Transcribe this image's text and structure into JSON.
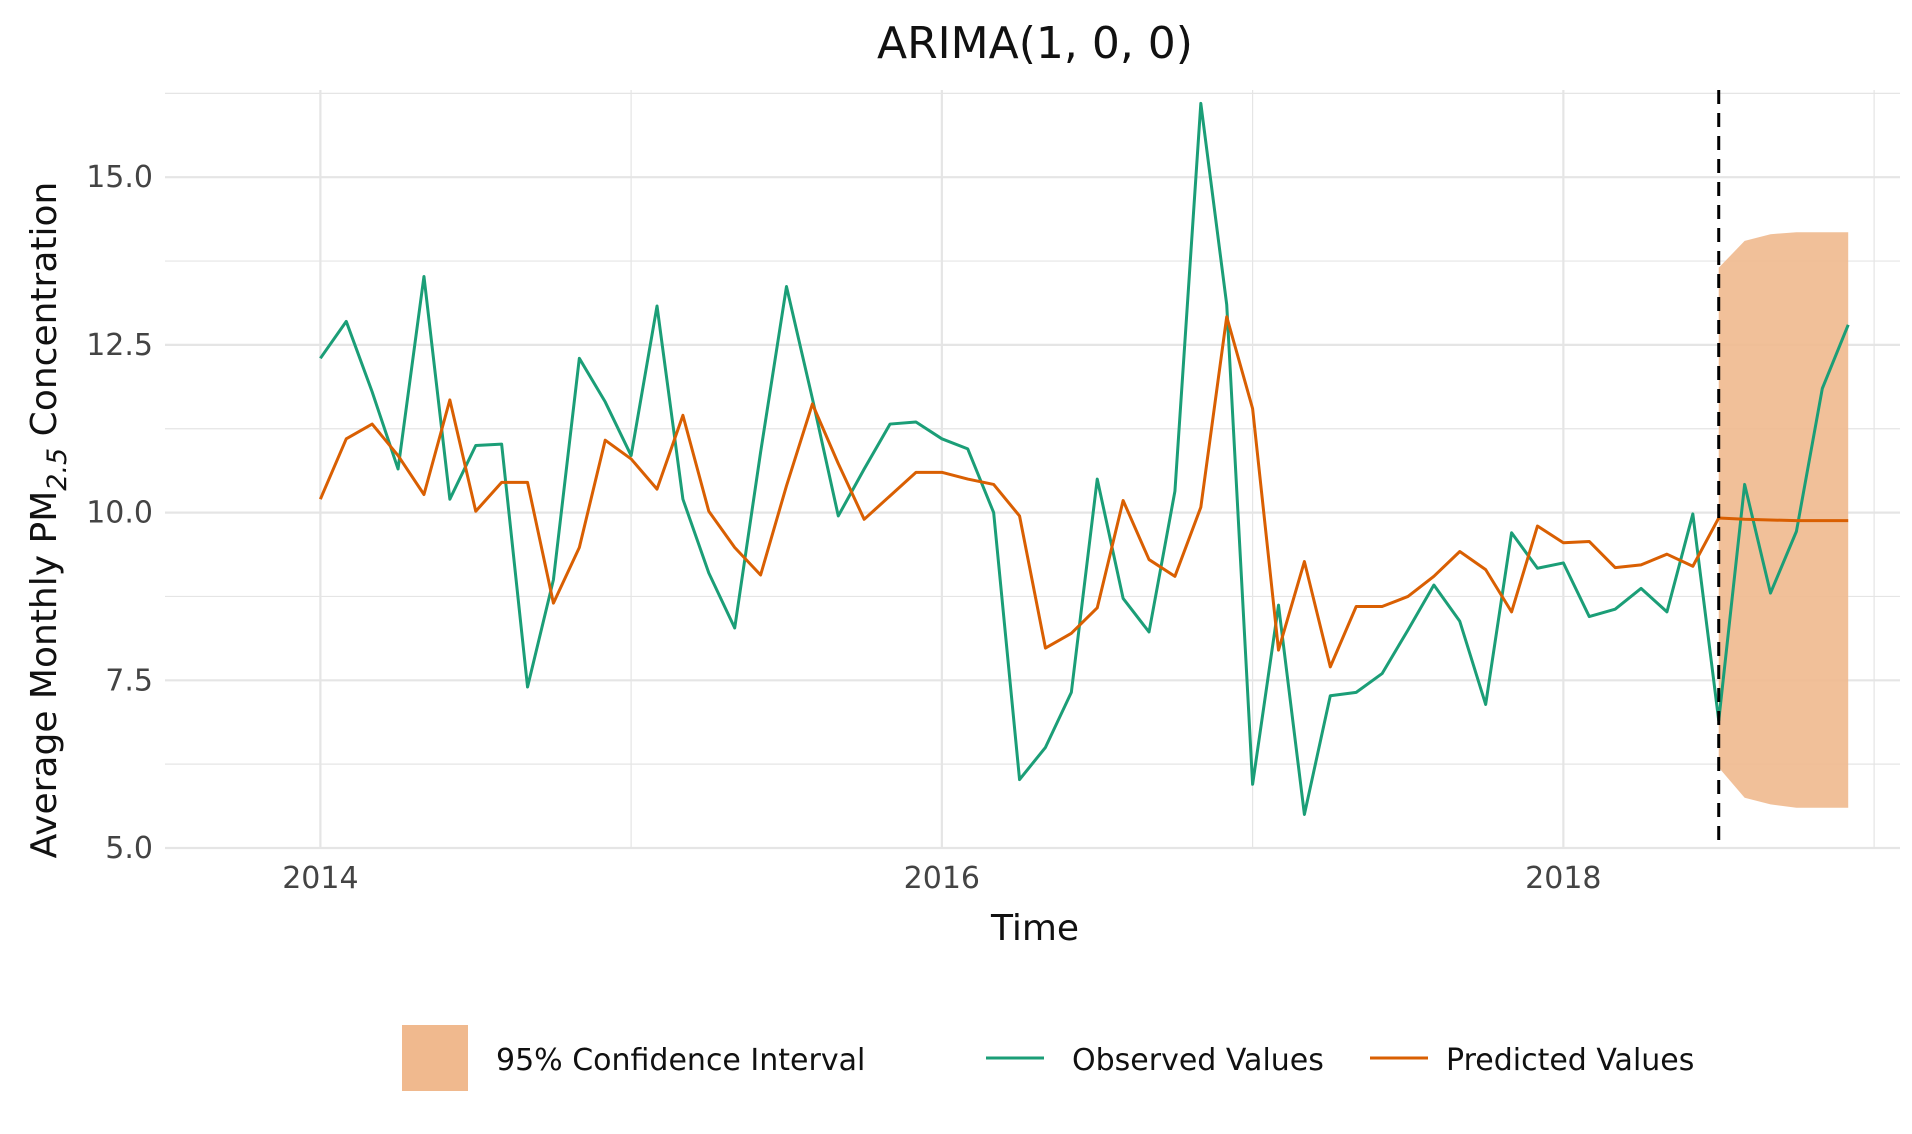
{
  "chart_data": {
    "type": "line",
    "title": "ARIMA(1, 0, 0)",
    "xlabel": "Time",
    "ylabel": "Average Monthly PM",
    "ylabel_sub": "2.5",
    "ylabel_suffix": " Concentration",
    "xlim": [
      "2013-07",
      "2019-02"
    ],
    "ylim": [
      5.0,
      16.3
    ],
    "grid": true,
    "legend_position": "bottom",
    "x_ticks": [
      {
        "value": "2014-01",
        "label": "2014"
      },
      {
        "value": "2016-01",
        "label": "2016"
      },
      {
        "value": "2018-01",
        "label": "2018"
      }
    ],
    "y_ticks": [
      {
        "value": 5.0,
        "label": "5.0"
      },
      {
        "value": 7.5,
        "label": "7.5"
      },
      {
        "value": 10.0,
        "label": "10.0"
      },
      {
        "value": 12.5,
        "label": "12.5"
      },
      {
        "value": 15.0,
        "label": "15.0"
      }
    ],
    "forecast_start": "2018-07",
    "legend": [
      {
        "key": "ci",
        "label": "95% Confidence Interval"
      },
      {
        "key": "observed",
        "label": "Observed Values"
      },
      {
        "key": "predicted",
        "label": "Predicted Values"
      }
    ],
    "series": [
      {
        "key": "observed",
        "name": "Observed Values",
        "x": [
          "2014-01",
          "2014-02",
          "2014-03",
          "2014-04",
          "2014-05",
          "2014-06",
          "2014-07",
          "2014-08",
          "2014-09",
          "2014-10",
          "2014-11",
          "2014-12",
          "2015-01",
          "2015-02",
          "2015-03",
          "2015-04",
          "2015-05",
          "2015-06",
          "2015-07",
          "2015-08",
          "2015-09",
          "2015-10",
          "2015-11",
          "2015-12",
          "2016-01",
          "2016-02",
          "2016-03",
          "2016-04",
          "2016-05",
          "2016-06",
          "2016-07",
          "2016-08",
          "2016-09",
          "2016-10",
          "2016-11",
          "2016-12",
          "2017-01",
          "2017-02",
          "2017-03",
          "2017-04",
          "2017-05",
          "2017-06",
          "2017-07",
          "2017-08",
          "2017-09",
          "2017-10",
          "2017-11",
          "2017-12",
          "2018-01",
          "2018-02",
          "2018-03",
          "2018-04",
          "2018-05",
          "2018-06",
          "2018-07",
          "2018-08",
          "2018-09",
          "2018-10",
          "2018-11",
          "2018-12"
        ],
        "values": [
          12.3,
          12.85,
          11.8,
          10.65,
          13.52,
          10.2,
          11.0,
          11.02,
          7.4,
          9.0,
          12.3,
          11.65,
          10.85,
          13.08,
          10.2,
          9.1,
          8.28,
          10.9,
          13.37,
          11.7,
          9.95,
          10.65,
          11.32,
          11.35,
          11.1,
          10.95,
          10.0,
          6.02,
          6.5,
          7.32,
          10.5,
          8.72,
          8.22,
          10.32,
          16.1,
          13.1,
          5.95,
          8.62,
          5.5,
          7.27,
          7.32,
          7.6,
          8.25,
          8.92,
          8.38,
          7.14,
          9.7,
          9.17,
          9.25,
          8.45,
          8.56,
          8.87,
          8.52,
          9.98,
          6.9,
          10.42,
          8.8,
          9.72,
          11.85,
          12.8
        ]
      },
      {
        "key": "predicted",
        "name": "Predicted Values",
        "x": [
          "2014-01",
          "2014-02",
          "2014-03",
          "2014-04",
          "2014-05",
          "2014-06",
          "2014-07",
          "2014-08",
          "2014-09",
          "2014-10",
          "2014-11",
          "2014-12",
          "2015-01",
          "2015-02",
          "2015-03",
          "2015-04",
          "2015-05",
          "2015-06",
          "2015-07",
          "2015-08",
          "2015-09",
          "2015-10",
          "2015-11",
          "2015-12",
          "2016-01",
          "2016-02",
          "2016-03",
          "2016-04",
          "2016-05",
          "2016-06",
          "2016-07",
          "2016-08",
          "2016-09",
          "2016-10",
          "2016-11",
          "2016-12",
          "2017-01",
          "2017-02",
          "2017-03",
          "2017-04",
          "2017-05",
          "2017-06",
          "2017-07",
          "2017-08",
          "2017-09",
          "2017-10",
          "2017-11",
          "2017-12",
          "2018-01",
          "2018-02",
          "2018-03",
          "2018-04",
          "2018-05",
          "2018-06",
          "2018-07",
          "2018-08",
          "2018-09",
          "2018-10",
          "2018-11",
          "2018-12"
        ],
        "values": [
          10.2,
          11.1,
          11.32,
          10.85,
          10.27,
          11.68,
          10.02,
          10.45,
          10.45,
          8.65,
          9.48,
          11.08,
          10.8,
          10.35,
          11.45,
          10.02,
          9.48,
          9.07,
          10.4,
          11.62,
          10.73,
          9.9,
          10.25,
          10.6,
          10.6,
          10.5,
          10.42,
          9.95,
          7.98,
          8.2,
          8.58,
          10.18,
          9.3,
          9.05,
          10.08,
          12.92,
          11.55,
          7.95,
          9.27,
          7.7,
          8.6,
          8.6,
          8.75,
          9.05,
          9.42,
          9.15,
          8.52,
          9.8,
          9.55,
          9.57,
          9.18,
          9.22,
          9.38,
          9.2,
          9.92,
          9.9,
          9.89,
          9.88,
          9.88,
          9.88
        ]
      }
    ],
    "confidence_interval": {
      "key": "ci",
      "name": "95% Confidence Interval",
      "x": [
        "2018-07",
        "2018-08",
        "2018-09",
        "2018-10",
        "2018-11",
        "2018-12"
      ],
      "lower": [
        6.2,
        5.75,
        5.65,
        5.6,
        5.6,
        5.6
      ],
      "upper": [
        13.65,
        14.05,
        14.15,
        14.18,
        14.18,
        14.18
      ]
    },
    "colors": {
      "observed": "#1b9e77",
      "predicted": "#d95f02",
      "ci_fill": "#f0b98e",
      "grid": "#e5e5e5",
      "forecast_line": "#000000"
    }
  }
}
